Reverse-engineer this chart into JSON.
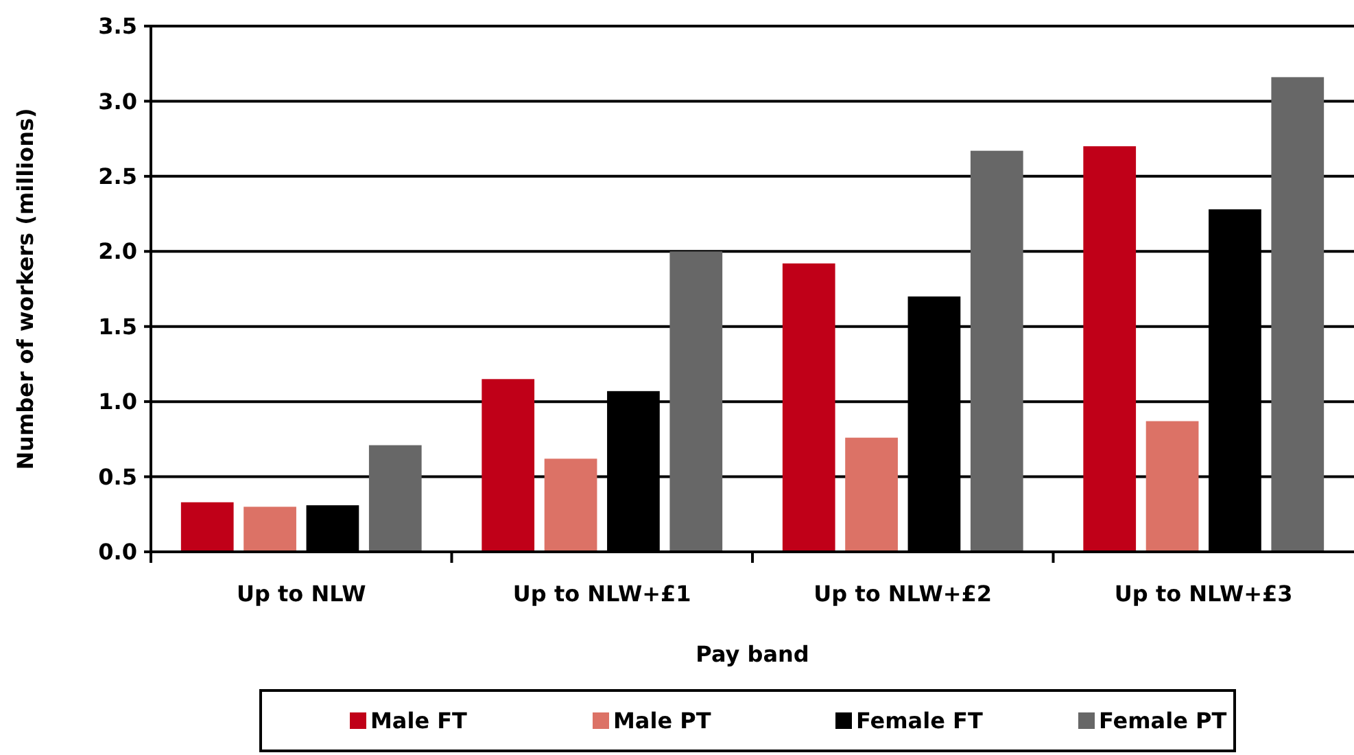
{
  "chart_data": {
    "type": "bar",
    "xlabel": "Pay band",
    "ylabel": "Number of workers (millions)",
    "categories": [
      "Up to NLW",
      "Up to NLW+£1",
      "Up to NLW+£2",
      "Up to NLW+£3"
    ],
    "series": [
      {
        "name": "Male FT",
        "color": "#c00018",
        "values": [
          0.33,
          1.15,
          1.92,
          2.7
        ]
      },
      {
        "name": "Male PT",
        "color": "#dc7266",
        "values": [
          0.3,
          0.62,
          0.76,
          0.87
        ]
      },
      {
        "name": "Female FT",
        "color": "#000000",
        "values": [
          0.31,
          1.07,
          1.7,
          2.28
        ]
      },
      {
        "name": "Female PT",
        "color": "#676767",
        "values": [
          0.71,
          2.0,
          2.67,
          3.16
        ]
      }
    ],
    "ylim": [
      0,
      3.5
    ],
    "yticks": [
      {
        "value": 0,
        "label": "0.0"
      },
      {
        "value": 0.5,
        "label": "0.5"
      },
      {
        "value": 1,
        "label": "1.0"
      },
      {
        "value": 1.5,
        "label": "1.5"
      },
      {
        "value": 2,
        "label": "2.0"
      },
      {
        "value": 2.5,
        "label": "2.5"
      },
      {
        "value": 3,
        "label": "3.0"
      },
      {
        "value": 3.5,
        "label": "3.5"
      }
    ],
    "grid": "y",
    "legend": "bottom"
  }
}
